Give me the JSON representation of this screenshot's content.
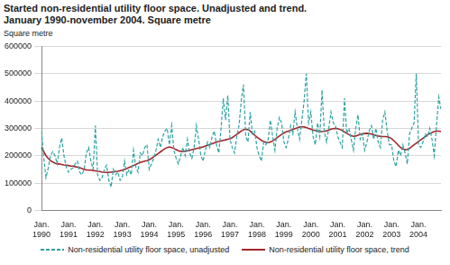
{
  "chart_data": {
    "type": "line",
    "title": [
      "Started non-residential utility floor space. Unadjusted and trend.",
      "January 1990-november 2004. Square metre"
    ],
    "y_label": "Square metre",
    "categories": [
      "Jan. 1990",
      null,
      null,
      null,
      null,
      null,
      null,
      null,
      null,
      null,
      null,
      null,
      "Jan. 1991",
      null,
      null,
      null,
      null,
      null,
      null,
      null,
      null,
      null,
      null,
      null,
      "Jan. 1992",
      null,
      null,
      null,
      null,
      null,
      null,
      null,
      null,
      null,
      null,
      null,
      "Jan. 1993",
      null,
      null,
      null,
      null,
      null,
      null,
      null,
      null,
      null,
      null,
      null,
      "Jan. 1994",
      null,
      null,
      null,
      null,
      null,
      null,
      null,
      null,
      null,
      null,
      null,
      "Jan. 1995",
      null,
      null,
      null,
      null,
      null,
      null,
      null,
      null,
      null,
      null,
      null,
      "Jan. 1996",
      null,
      null,
      null,
      null,
      null,
      null,
      null,
      null,
      null,
      null,
      null,
      "Jan. 1997",
      null,
      null,
      null,
      null,
      null,
      null,
      null,
      null,
      null,
      null,
      null,
      "Jan. 1998",
      null,
      null,
      null,
      null,
      null,
      null,
      null,
      null,
      null,
      null,
      null,
      "Jan. 1999",
      null,
      null,
      null,
      null,
      null,
      null,
      null,
      null,
      null,
      null,
      null,
      "Jan. 2000",
      null,
      null,
      null,
      null,
      null,
      null,
      null,
      null,
      null,
      null,
      null,
      "Jan. 2001",
      null,
      null,
      null,
      null,
      null,
      null,
      null,
      null,
      null,
      null,
      null,
      "Jan. 2002",
      null,
      null,
      null,
      null,
      null,
      null,
      null,
      null,
      null,
      null,
      null,
      "Jan. 2003",
      null,
      null,
      null,
      null,
      null,
      null,
      null,
      null,
      null,
      null,
      null,
      "Jan. 2004",
      null,
      null,
      null,
      null,
      null,
      null,
      null,
      null,
      null,
      null
    ],
    "series": [
      {
        "name": "Non-residential utility floor space, unadjusted",
        "color": "#2ea3a3",
        "line_style": "dashed",
        "values": [
          290000,
          190000,
          120000,
          155000,
          200000,
          215000,
          200000,
          170000,
          230000,
          265000,
          200000,
          160000,
          140000,
          150000,
          155000,
          170000,
          180000,
          140000,
          130000,
          150000,
          210000,
          230000,
          180000,
          150000,
          310000,
          130000,
          110000,
          120000,
          150000,
          165000,
          110000,
          85000,
          150000,
          130000,
          140000,
          110000,
          120000,
          180000,
          130000,
          150000,
          130000,
          220000,
          160000,
          140000,
          210000,
          200000,
          230000,
          240000,
          150000,
          170000,
          190000,
          220000,
          260000,
          230000,
          270000,
          290000,
          300000,
          240000,
          310000,
          220000,
          190000,
          170000,
          200000,
          230000,
          200000,
          260000,
          210000,
          190000,
          230000,
          310000,
          260000,
          200000,
          180000,
          220000,
          250000,
          230000,
          270000,
          290000,
          240000,
          210000,
          300000,
          410000,
          330000,
          420000,
          260000,
          230000,
          210000,
          270000,
          310000,
          400000,
          460000,
          270000,
          250000,
          360000,
          280000,
          290000,
          230000,
          200000,
          180000,
          250000,
          240000,
          260000,
          330000,
          270000,
          220000,
          300000,
          340000,
          320000,
          250000,
          230000,
          260000,
          310000,
          280000,
          360000,
          300000,
          260000,
          330000,
          400000,
          500000,
          320000,
          360000,
          270000,
          240000,
          320000,
          270000,
          440000,
          290000,
          250000,
          300000,
          360000,
          320000,
          310000,
          270000,
          250000,
          230000,
          410000,
          280000,
          300000,
          260000,
          220000,
          300000,
          350000,
          260000,
          280000,
          220000,
          250000,
          290000,
          310000,
          260000,
          300000,
          250000,
          230000,
          330000,
          360000,
          290000,
          240000,
          240000,
          180000,
          160000,
          220000,
          200000,
          240000,
          210000,
          170000,
          280000,
          300000,
          320000,
          500000,
          240000,
          230000,
          250000,
          280000,
          270000,
          300000,
          260000,
          200000,
          310000,
          415000,
          370000
        ]
      },
      {
        "name": "Non-residential utility floor space, trend",
        "color": "#a3262a",
        "line_style": "solid",
        "values": [
          230000,
          215000,
          200000,
          190000,
          182000,
          177000,
          173000,
          170000,
          170000,
          168000,
          166000,
          165000,
          164000,
          162000,
          162000,
          160000,
          158000,
          156000,
          153000,
          150000,
          148000,
          147000,
          147000,
          146000,
          145000,
          143000,
          142000,
          140000,
          139000,
          139000,
          139000,
          140000,
          141000,
          142000,
          143000,
          145000,
          147000,
          150000,
          153000,
          157000,
          160000,
          164000,
          168000,
          172000,
          175000,
          178000,
          180000,
          182000,
          185000,
          190000,
          196000,
          202000,
          208000,
          214000,
          220000,
          226000,
          230000,
          232000,
          230000,
          226000,
          222000,
          218000,
          216000,
          215000,
          216000,
          218000,
          220000,
          222000,
          224000,
          226000,
          228000,
          230000,
          232000,
          235000,
          238000,
          241000,
          244000,
          247000,
          250000,
          252000,
          254000,
          256000,
          258000,
          260000,
          262000,
          266000,
          272000,
          278000,
          284000,
          290000,
          295000,
          297000,
          295000,
          290000,
          282000,
          275000,
          268000,
          262000,
          256000,
          252000,
          249000,
          248000,
          250000,
          254000,
          260000,
          266000,
          272000,
          278000,
          283000,
          287000,
          290000,
          293000,
          296000,
          299000,
          302000,
          305000,
          306000,
          305000,
          303000,
          300000,
          297000,
          294000,
          292000,
          290000,
          288000,
          288000,
          289000,
          291000,
          294000,
          297000,
          299000,
          300000,
          299000,
          296000,
          292000,
          287000,
          282000,
          277000,
          273000,
          271000,
          272000,
          275000,
          278000,
          280000,
          281000,
          282000,
          281000,
          279000,
          277000,
          274000,
          272000,
          271000,
          270000,
          270000,
          269000,
          267000,
          262000,
          255000,
          247000,
          238000,
          230000,
          225000,
          222000,
          223000,
          227000,
          233000,
          240000,
          246000,
          252000,
          258000,
          264000,
          270000,
          276000,
          281000,
          285000,
          288000,
          290000,
          290000,
          288000
        ]
      }
    ],
    "ylim": [
      0,
      600000
    ],
    "yticks": [
      0,
      100000,
      200000,
      300000,
      400000,
      500000,
      600000
    ],
    "grid": true,
    "legend": "bottom"
  }
}
